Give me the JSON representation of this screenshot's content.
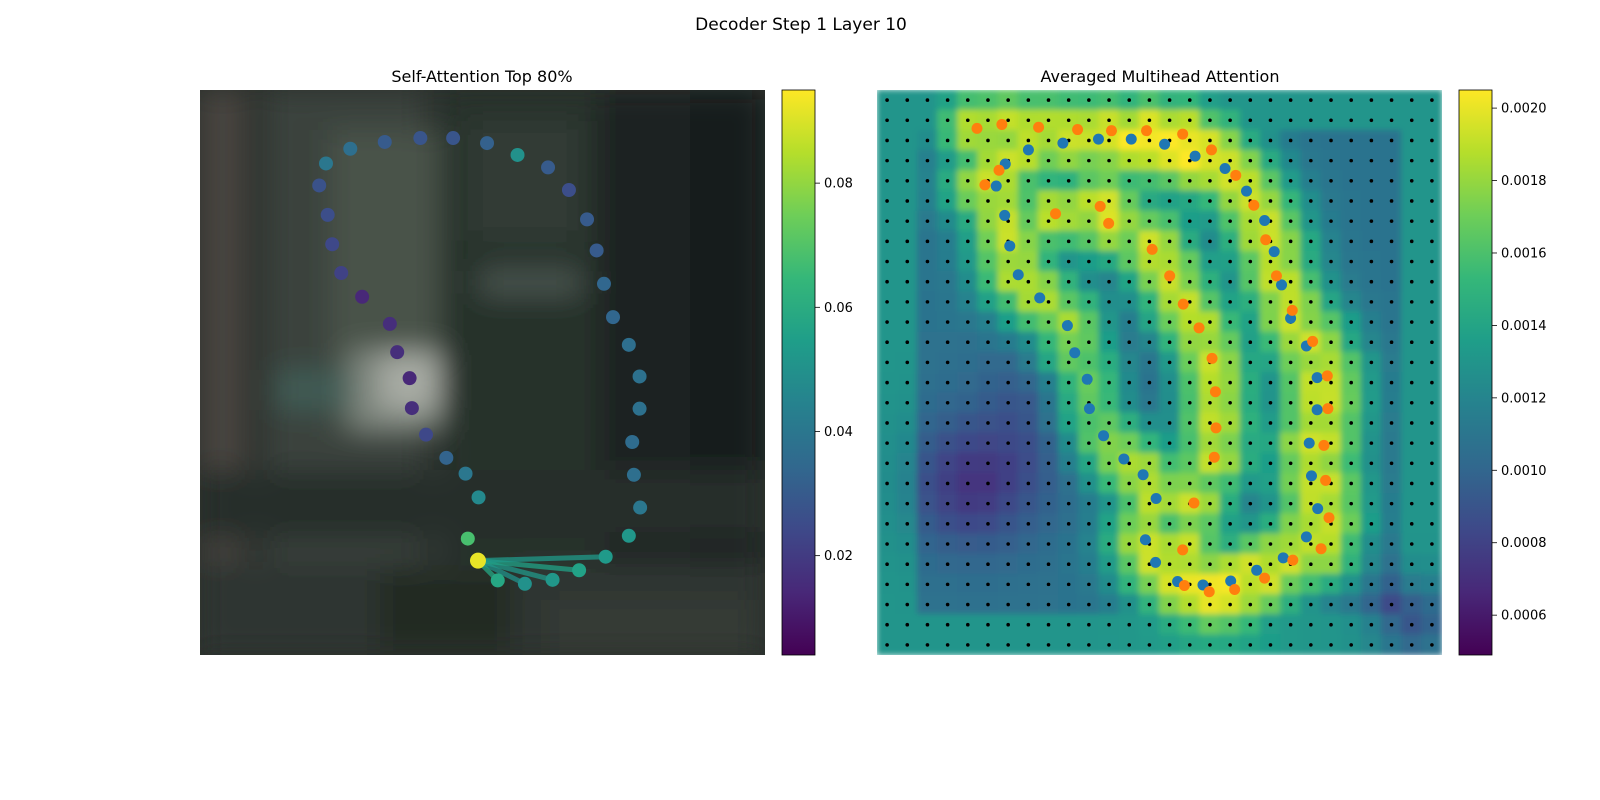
{
  "figure": {
    "suptitle": "Decoder Step 1 Layer 10"
  },
  "chart_data": [
    {
      "type": "scatter",
      "title": "Self-Attention Top 80%",
      "xlim": [
        0,
        1
      ],
      "ylim": [
        1,
        0
      ],
      "axes_visible": false,
      "background": "blurred photo of a dim room (dark gray-green tones)",
      "colormap": "viridis",
      "colorbar": {
        "range": [
          0.004,
          0.095
        ],
        "ticks": [
          0.02,
          0.04,
          0.06,
          0.08
        ],
        "tick_labels": [
          "0.02",
          "0.04",
          "0.06",
          "0.08"
        ]
      },
      "points": [
        {
          "x": 0.492,
          "y": 0.833,
          "v": 0.092
        },
        {
          "x": 0.474,
          "y": 0.794,
          "v": 0.068
        },
        {
          "x": 0.493,
          "y": 0.721,
          "v": 0.047
        },
        {
          "x": 0.47,
          "y": 0.679,
          "v": 0.04
        },
        {
          "x": 0.436,
          "y": 0.651,
          "v": 0.033
        },
        {
          "x": 0.4,
          "y": 0.61,
          "v": 0.024
        },
        {
          "x": 0.375,
          "y": 0.563,
          "v": 0.016
        },
        {
          "x": 0.371,
          "y": 0.51,
          "v": 0.014
        },
        {
          "x": 0.349,
          "y": 0.464,
          "v": 0.016
        },
        {
          "x": 0.336,
          "y": 0.414,
          "v": 0.016
        },
        {
          "x": 0.287,
          "y": 0.366,
          "v": 0.014
        },
        {
          "x": 0.25,
          "y": 0.324,
          "v": 0.022
        },
        {
          "x": 0.234,
          "y": 0.273,
          "v": 0.024
        },
        {
          "x": 0.226,
          "y": 0.221,
          "v": 0.026
        },
        {
          "x": 0.211,
          "y": 0.169,
          "v": 0.027
        },
        {
          "x": 0.223,
          "y": 0.13,
          "v": 0.04
        },
        {
          "x": 0.266,
          "y": 0.104,
          "v": 0.037
        },
        {
          "x": 0.327,
          "y": 0.092,
          "v": 0.03
        },
        {
          "x": 0.39,
          "y": 0.085,
          "v": 0.028
        },
        {
          "x": 0.448,
          "y": 0.085,
          "v": 0.028
        },
        {
          "x": 0.508,
          "y": 0.094,
          "v": 0.032
        },
        {
          "x": 0.562,
          "y": 0.115,
          "v": 0.05
        },
        {
          "x": 0.616,
          "y": 0.137,
          "v": 0.03
        },
        {
          "x": 0.653,
          "y": 0.177,
          "v": 0.026
        },
        {
          "x": 0.685,
          "y": 0.229,
          "v": 0.03
        },
        {
          "x": 0.702,
          "y": 0.284,
          "v": 0.03
        },
        {
          "x": 0.715,
          "y": 0.343,
          "v": 0.034
        },
        {
          "x": 0.731,
          "y": 0.402,
          "v": 0.034
        },
        {
          "x": 0.759,
          "y": 0.451,
          "v": 0.037
        },
        {
          "x": 0.778,
          "y": 0.507,
          "v": 0.038
        },
        {
          "x": 0.778,
          "y": 0.564,
          "v": 0.038
        },
        {
          "x": 0.765,
          "y": 0.623,
          "v": 0.036
        },
        {
          "x": 0.768,
          "y": 0.681,
          "v": 0.037
        },
        {
          "x": 0.779,
          "y": 0.739,
          "v": 0.04
        },
        {
          "x": 0.759,
          "y": 0.789,
          "v": 0.052
        },
        {
          "x": 0.718,
          "y": 0.826,
          "v": 0.053
        },
        {
          "x": 0.671,
          "y": 0.85,
          "v": 0.056
        },
        {
          "x": 0.624,
          "y": 0.867,
          "v": 0.052
        },
        {
          "x": 0.575,
          "y": 0.874,
          "v": 0.05
        },
        {
          "x": 0.527,
          "y": 0.868,
          "v": 0.058
        }
      ],
      "attention_links": [
        {
          "from": 0,
          "to": 39,
          "v": 0.058
        },
        {
          "from": 0,
          "to": 38,
          "v": 0.05
        },
        {
          "from": 0,
          "to": 37,
          "v": 0.052
        },
        {
          "from": 0,
          "to": 36,
          "v": 0.056
        },
        {
          "from": 0,
          "to": 35,
          "v": 0.053
        }
      ]
    },
    {
      "type": "heatmap",
      "title": "Averaged Multihead Attention",
      "xlim": [
        0,
        1
      ],
      "ylim": [
        1,
        0
      ],
      "axes_visible": false,
      "colormap": "viridis",
      "grid_size": [
        28,
        28
      ],
      "colorbar": {
        "range": [
          0.00049,
          0.00205
        ],
        "ticks": [
          0.0006,
          0.0008,
          0.001,
          0.0012,
          0.0014,
          0.0016,
          0.0018,
          0.002
        ],
        "tick_labels": [
          "0.0006",
          "0.0008",
          "0.0010",
          "0.0012",
          "0.0014",
          "0.0016",
          "0.0018",
          "0.0020"
        ]
      },
      "series": [
        {
          "color": "#1f77b4",
          "points": [
            {
              "x": 0.227,
              "y": 0.131
            },
            {
              "x": 0.211,
              "y": 0.17
            },
            {
              "x": 0.226,
              "y": 0.222
            },
            {
              "x": 0.235,
              "y": 0.276
            },
            {
              "x": 0.25,
              "y": 0.327
            },
            {
              "x": 0.288,
              "y": 0.368
            },
            {
              "x": 0.337,
              "y": 0.417
            },
            {
              "x": 0.35,
              "y": 0.465
            },
            {
              "x": 0.372,
              "y": 0.512
            },
            {
              "x": 0.376,
              "y": 0.564
            },
            {
              "x": 0.401,
              "y": 0.612
            },
            {
              "x": 0.437,
              "y": 0.653
            },
            {
              "x": 0.471,
              "y": 0.681
            },
            {
              "x": 0.494,
              "y": 0.723
            },
            {
              "x": 0.475,
              "y": 0.796
            },
            {
              "x": 0.493,
              "y": 0.836
            },
            {
              "x": 0.532,
              "y": 0.87
            },
            {
              "x": 0.577,
              "y": 0.876
            },
            {
              "x": 0.626,
              "y": 0.869
            },
            {
              "x": 0.672,
              "y": 0.85
            },
            {
              "x": 0.719,
              "y": 0.828
            },
            {
              "x": 0.76,
              "y": 0.791
            },
            {
              "x": 0.78,
              "y": 0.741
            },
            {
              "x": 0.769,
              "y": 0.683
            },
            {
              "x": 0.765,
              "y": 0.625
            },
            {
              "x": 0.779,
              "y": 0.566
            },
            {
              "x": 0.779,
              "y": 0.509
            },
            {
              "x": 0.76,
              "y": 0.453
            },
            {
              "x": 0.732,
              "y": 0.404
            },
            {
              "x": 0.716,
              "y": 0.345
            },
            {
              "x": 0.703,
              "y": 0.286
            },
            {
              "x": 0.686,
              "y": 0.231
            },
            {
              "x": 0.654,
              "y": 0.179
            },
            {
              "x": 0.616,
              "y": 0.139
            },
            {
              "x": 0.563,
              "y": 0.117
            },
            {
              "x": 0.509,
              "y": 0.096
            },
            {
              "x": 0.45,
              "y": 0.087
            },
            {
              "x": 0.392,
              "y": 0.087
            },
            {
              "x": 0.329,
              "y": 0.094
            },
            {
              "x": 0.268,
              "y": 0.106
            }
          ]
        },
        {
          "color": "#ff7f0e",
          "points": [
            {
              "x": 0.177,
              "y": 0.068
            },
            {
              "x": 0.221,
              "y": 0.061
            },
            {
              "x": 0.286,
              "y": 0.066
            },
            {
              "x": 0.355,
              "y": 0.07
            },
            {
              "x": 0.415,
              "y": 0.072
            },
            {
              "x": 0.477,
              "y": 0.072
            },
            {
              "x": 0.541,
              "y": 0.078
            },
            {
              "x": 0.592,
              "y": 0.106
            },
            {
              "x": 0.635,
              "y": 0.151
            },
            {
              "x": 0.667,
              "y": 0.204
            },
            {
              "x": 0.688,
              "y": 0.265
            },
            {
              "x": 0.707,
              "y": 0.329
            },
            {
              "x": 0.735,
              "y": 0.39
            },
            {
              "x": 0.771,
              "y": 0.445
            },
            {
              "x": 0.797,
              "y": 0.506
            },
            {
              "x": 0.798,
              "y": 0.564
            },
            {
              "x": 0.791,
              "y": 0.629
            },
            {
              "x": 0.794,
              "y": 0.691
            },
            {
              "x": 0.8,
              "y": 0.757
            },
            {
              "x": 0.786,
              "y": 0.812
            },
            {
              "x": 0.736,
              "y": 0.832
            },
            {
              "x": 0.686,
              "y": 0.864
            },
            {
              "x": 0.633,
              "y": 0.884
            },
            {
              "x": 0.588,
              "y": 0.888
            },
            {
              "x": 0.544,
              "y": 0.877
            },
            {
              "x": 0.541,
              "y": 0.814
            },
            {
              "x": 0.561,
              "y": 0.731
            },
            {
              "x": 0.597,
              "y": 0.65
            },
            {
              "x": 0.6,
              "y": 0.598
            },
            {
              "x": 0.599,
              "y": 0.534
            },
            {
              "x": 0.593,
              "y": 0.475
            },
            {
              "x": 0.57,
              "y": 0.421
            },
            {
              "x": 0.542,
              "y": 0.379
            },
            {
              "x": 0.518,
              "y": 0.329
            },
            {
              "x": 0.487,
              "y": 0.282
            },
            {
              "x": 0.41,
              "y": 0.236
            },
            {
              "x": 0.395,
              "y": 0.206
            },
            {
              "x": 0.316,
              "y": 0.219
            },
            {
              "x": 0.216,
              "y": 0.142
            },
            {
              "x": 0.191,
              "y": 0.168
            }
          ]
        }
      ]
    }
  ]
}
